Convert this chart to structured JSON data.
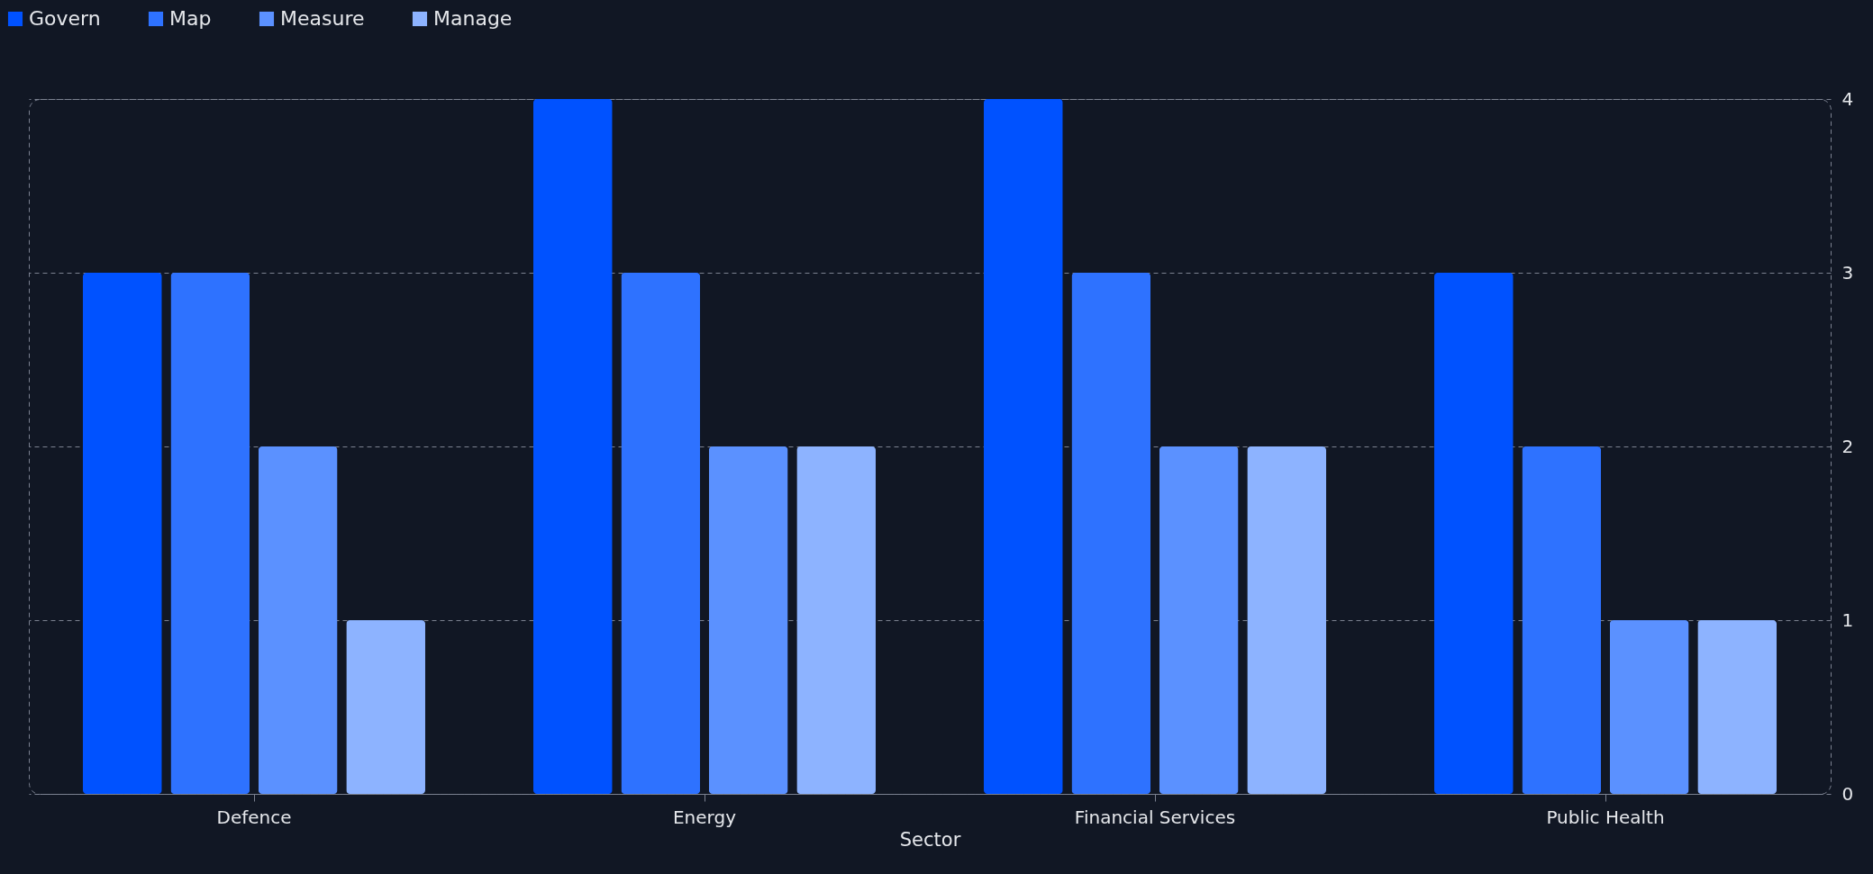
{
  "chart_data": {
    "type": "bar",
    "xlabel": "Sector",
    "categories": [
      "Defence",
      "Energy",
      "Financial Services",
      "Public Health"
    ],
    "series": [
      {
        "name": "Govern",
        "color": "#0052ff",
        "values": [
          3,
          4,
          4,
          3
        ]
      },
      {
        "name": "Map",
        "color": "#2e72ff",
        "values": [
          3,
          3,
          3,
          2
        ]
      },
      {
        "name": "Measure",
        "color": "#5b91ff",
        "values": [
          2,
          2,
          2,
          1
        ]
      },
      {
        "name": "Manage",
        "color": "#8db3ff",
        "values": [
          1,
          2,
          2,
          1
        ]
      }
    ],
    "ylim": [
      0,
      4
    ],
    "yticks": [
      0,
      1,
      2,
      3,
      4
    ],
    "grid": "y",
    "legend": "top left"
  }
}
